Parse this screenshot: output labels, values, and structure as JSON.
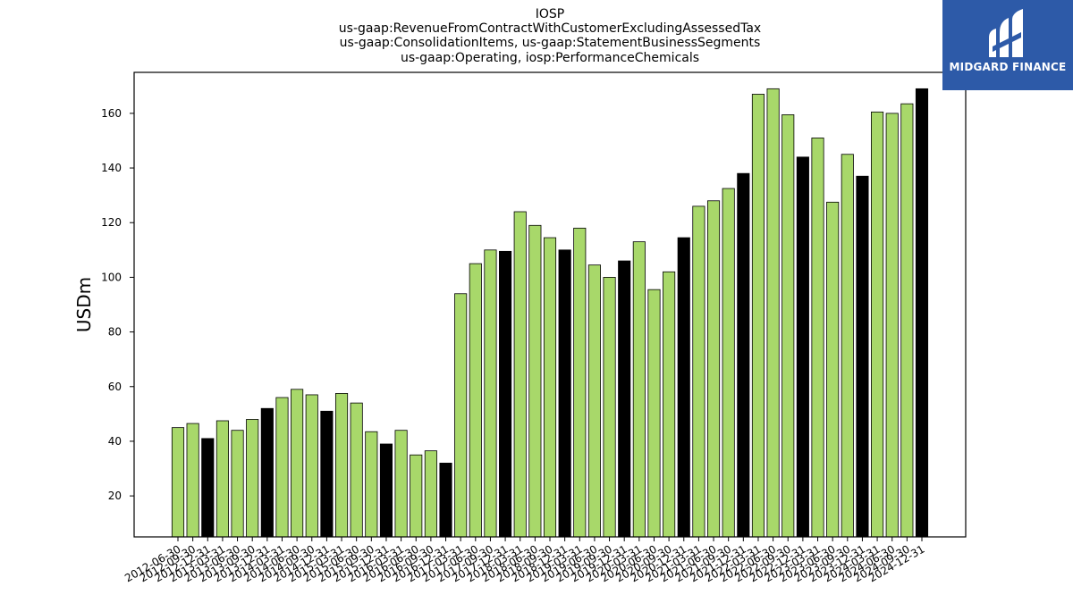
{
  "chart_data": {
    "type": "bar",
    "title": [
      "IOSP",
      "us-gaap:RevenueFromContractWithCustomerExcludingAssessedTax",
      "us-gaap:ConsolidationItems, us-gaap:StatementBusinessSegments",
      "us-gaap:Operating, iosp:PerformanceChemicals"
    ],
    "xlabel": "",
    "ylabel": "USDm",
    "ylim": [
      5,
      175
    ],
    "yticks": [
      20,
      40,
      60,
      80,
      100,
      120,
      140,
      160
    ],
    "grid": false,
    "colors": {
      "quarter": "#a8d86a",
      "year_end": "#000000",
      "edge": "#000000"
    },
    "categories": [
      "2012-06-30",
      "2012-09-30",
      "2012-12-31",
      "2013-03-31",
      "2013-06-30",
      "2013-09-30",
      "2013-12-31",
      "2014-03-31",
      "2014-06-30",
      "2014-09-30",
      "2014-12-31",
      "2015-03-31",
      "2015-06-30",
      "2015-09-30",
      "2015-12-31",
      "2016-03-31",
      "2016-06-30",
      "2016-09-30",
      "2016-12-31",
      "2017-03-31",
      "2017-06-30",
      "2017-09-30",
      "2017-12-31",
      "2018-03-31",
      "2018-06-30",
      "2018-09-30",
      "2018-12-31",
      "2019-03-31",
      "2019-06-30",
      "2019-09-30",
      "2019-12-31",
      "2020-03-31",
      "2020-06-30",
      "2020-09-30",
      "2020-12-31",
      "2021-03-31",
      "2021-06-30",
      "2021-09-30",
      "2021-12-31",
      "2022-03-31",
      "2022-06-30",
      "2022-09-30",
      "2022-12-31",
      "2023-03-31",
      "2023-06-30",
      "2023-09-30",
      "2023-12-31",
      "2024-03-31",
      "2024-06-30",
      "2024-09-30",
      "2024-12-31"
    ],
    "values": [
      45,
      46.5,
      41,
      47.5,
      44,
      48,
      52,
      56,
      59,
      57,
      51,
      57.5,
      54,
      43.5,
      39,
      44,
      35,
      36.5,
      32,
      94,
      105,
      110,
      109.5,
      124,
      119,
      114.5,
      110,
      118,
      104.5,
      100,
      106,
      113,
      95.5,
      102,
      114.5,
      126,
      128,
      132.5,
      138,
      167,
      169,
      159.5,
      144,
      151,
      127.5,
      145,
      137,
      160.5,
      160,
      163.5,
      169
    ],
    "highlight_year_end": true
  },
  "logo": {
    "text": "MIDGARD FINANCE"
  }
}
